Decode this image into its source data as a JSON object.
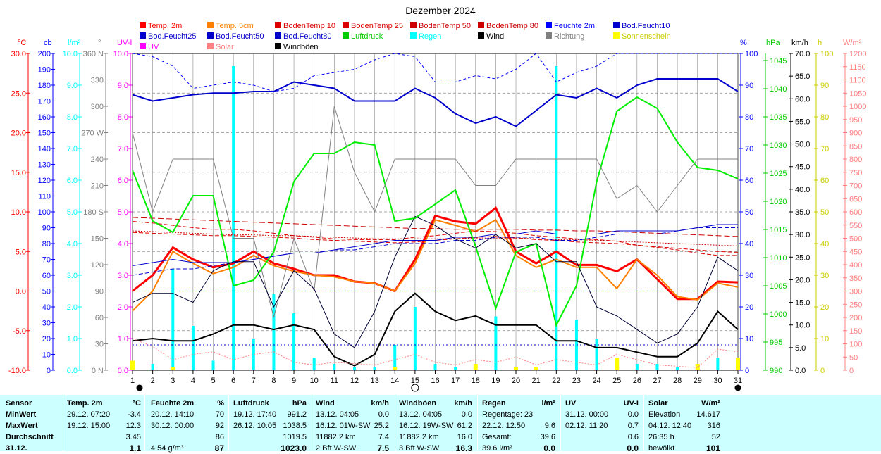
{
  "chart_data": {
    "type": "line",
    "title": "Dezember 2024",
    "x": [
      1,
      2,
      3,
      4,
      5,
      6,
      7,
      8,
      9,
      10,
      11,
      12,
      13,
      14,
      15,
      16,
      17,
      18,
      19,
      20,
      21,
      22,
      23,
      24,
      25,
      26,
      27,
      28,
      29,
      30,
      31
    ],
    "xlim": [
      1,
      31
    ],
    "legend": [
      {
        "label": "Temp. 2m",
        "color": "#ff0000"
      },
      {
        "label": "Temp. 5cm",
        "color": "#ff8000"
      },
      {
        "label": "BodenTemp 10",
        "color": "#dd0000"
      },
      {
        "label": "BodenTemp 25",
        "color": "#dd0000"
      },
      {
        "label": "BodenTemp 50",
        "color": "#cc0000"
      },
      {
        "label": "BodenTemp 80",
        "color": "#cc0000"
      },
      {
        "label": "Feuchte 2m",
        "color": "#0000ff"
      },
      {
        "label": "Bod.Feucht10",
        "color": "#0000cc"
      },
      {
        "label": "Bod.Feucht25",
        "color": "#0000cc"
      },
      {
        "label": "Bod.Feucht50",
        "color": "#0000cc"
      },
      {
        "label": "Bod.Feucht80",
        "color": "#0000cc"
      },
      {
        "label": "Luftdruck",
        "color": "#00cc00"
      },
      {
        "label": "Regen",
        "color": "#00ffff"
      },
      {
        "label": "Wind",
        "color": "#000000"
      },
      {
        "label": "Richtung",
        "color": "#808080"
      },
      {
        "label": "Sonnenschein",
        "color": "#ffff00"
      },
      {
        "label": "UV",
        "color": "#ff00ff"
      },
      {
        "label": "Solar",
        "color": "#ff8080"
      },
      {
        "label": "Windböen",
        "color": "#000000"
      }
    ],
    "axes": {
      "temp": {
        "unit": "°C",
        "ticks": [
          "30.0",
          "25.0",
          "20.0",
          "15.0",
          "10.0",
          "5.0",
          "0.0",
          "-5.0",
          "-10.0"
        ],
        "color": "#ff0000"
      },
      "cb": {
        "unit": "cb",
        "ticks": [
          "200",
          "190",
          "180",
          "170",
          "160",
          "150",
          "140",
          "130",
          "120",
          "110",
          "100",
          "90",
          "80",
          "70",
          "60",
          "50",
          "40",
          "30",
          "20",
          "10",
          "0"
        ],
        "color": "#0000ff"
      },
      "rain": {
        "unit": "l/m²",
        "ticks": [
          "10.0",
          "9.0",
          "8.0",
          "7.0",
          "6.0",
          "5.0",
          "4.0",
          "3.0",
          "2.0",
          "1.0",
          "0.0"
        ],
        "color": "#00ffff"
      },
      "dir": {
        "unit": "°",
        "ticks": [
          "360 N",
          "330",
          "300",
          "270 W",
          "240",
          "210",
          "180 S",
          "150",
          "120",
          "90",
          "60",
          "30",
          "0 N"
        ],
        "color": "#808080"
      },
      "uv": {
        "unit": "UV-I",
        "ticks": [
          "10.0",
          "9.0",
          "8.0",
          "7.0",
          "6.0",
          "5.0",
          "4.0",
          "3.0",
          "2.0",
          "1.0",
          "0.0"
        ],
        "color": "#ff00ff"
      },
      "hum": {
        "unit": "%",
        "ticks": [
          "100",
          "90",
          "80",
          "70",
          "60",
          "50",
          "40",
          "30",
          "20",
          "10",
          "0"
        ],
        "color": "#0000ff"
      },
      "press": {
        "unit": "hPa",
        "ticks": [
          "1045",
          "1040",
          "1035",
          "1030",
          "1025",
          "1020",
          "1015",
          "1010",
          "1005",
          "1000",
          "995",
          "990"
        ],
        "color": "#00cc00"
      },
      "wind": {
        "unit": "km/h",
        "ticks": [
          "70.0",
          "65.0",
          "60.0",
          "55.0",
          "50.0",
          "45.0",
          "40.0",
          "35.0",
          "30.0",
          "25.0",
          "20.0",
          "15.0",
          "10.0",
          "5.0",
          "0.0"
        ],
        "color": "#000000"
      },
      "sun": {
        "unit": "h",
        "ticks": [
          "100",
          "90",
          "80",
          "70",
          "60",
          "50",
          "40",
          "30",
          "20",
          "10",
          "0"
        ],
        "color": "#cccc00"
      },
      "solar": {
        "unit": "W/m²",
        "ticks": [
          "1200",
          "1150",
          "1100",
          "1050",
          "1000",
          "950",
          "900",
          "850",
          "800",
          "750",
          "700",
          "650",
          "600",
          "550",
          "500",
          "450",
          "400",
          "350",
          "300",
          "250",
          "200",
          "150",
          "100",
          "50",
          "0"
        ],
        "color": "#ff8080"
      }
    },
    "series": [
      {
        "name": "Temp. 2m",
        "axis": "temp",
        "color": "#ff0000",
        "width": 3,
        "values": [
          0,
          2,
          5.5,
          4,
          3,
          3.5,
          5,
          3.5,
          2.8,
          2,
          2,
          1.2,
          1,
          0,
          4,
          9.5,
          8.8,
          8.5,
          10.5,
          5,
          3.5,
          5,
          3.3,
          3.3,
          2.5,
          4,
          1.5,
          -1,
          -1,
          1.2,
          1.1
        ]
      },
      {
        "name": "Temp. 5cm",
        "axis": "temp",
        "color": "#ff8000",
        "width": 2,
        "values": [
          -2.5,
          0,
          5,
          3.5,
          2.2,
          3,
          4.5,
          3.2,
          2.5,
          2,
          1.8,
          1.2,
          1,
          0,
          3.5,
          9,
          8.3,
          7.5,
          9,
          4.5,
          3,
          4,
          3,
          3,
          0.3,
          4,
          2,
          -0.7,
          -1.1,
          1,
          0.5
        ]
      },
      {
        "name": "BodenTemp 10",
        "axis": "temp",
        "color": "#dd0000",
        "width": 1,
        "dash": "6,3",
        "values": [
          8.8,
          8.6,
          8.3,
          8,
          7.8,
          7.8,
          7.6,
          7.3,
          7,
          6.8,
          6.6,
          6.5,
          6.5,
          6.5,
          6.8,
          7,
          7.3,
          7.6,
          7.5,
          7.3,
          7,
          6.8,
          6.6,
          6.5,
          6.3,
          5.8,
          5.5,
          5.2,
          4.8,
          4.5,
          4.5
        ]
      },
      {
        "name": "BodenTemp 25",
        "axis": "temp",
        "color": "#dd0000",
        "width": 1,
        "dash": "6,3",
        "values": [
          7.4,
          7.3,
          7.2,
          7.1,
          7,
          7,
          6.9,
          6.8,
          6.7,
          6.5,
          6.4,
          6.3,
          6.2,
          6.1,
          6.2,
          6.4,
          6.6,
          6.8,
          6.9,
          6.7,
          6.5,
          6.4,
          6.2,
          6.1,
          6,
          5.8,
          5.6,
          5.4,
          5.2,
          5,
          4.9
        ]
      },
      {
        "name": "BodenTemp 50",
        "axis": "temp",
        "color": "#cc0000",
        "width": 1,
        "dash": "2,2",
        "values": [
          7.6,
          7.5,
          7.4,
          7.3,
          7.2,
          7.1,
          7.1,
          7,
          7,
          6.9,
          6.8,
          6.7,
          6.6,
          6.6,
          6.6,
          6.6,
          6.6,
          6.7,
          6.7,
          6.7,
          6.6,
          6.5,
          6.5,
          6.4,
          6.3,
          6.2,
          6.1,
          6,
          5.9,
          5.8,
          5.7
        ]
      },
      {
        "name": "BodenTemp 80",
        "axis": "temp",
        "color": "#cc0000",
        "width": 1,
        "dash": "8,4",
        "values": [
          9.3,
          9.2,
          9.1,
          9,
          8.9,
          8.8,
          8.7,
          8.6,
          8.5,
          8.4,
          8.3,
          8.2,
          8.1,
          8,
          7.9,
          7.9,
          7.8,
          7.8,
          7.8,
          7.8,
          7.7,
          7.7,
          7.6,
          7.6,
          7.5,
          7.4,
          7.3,
          7.2,
          7.1,
          7,
          6.9
        ]
      },
      {
        "name": "Feuchte 2m",
        "axis": "hum",
        "color": "#0000cc",
        "width": 2,
        "values": [
          87,
          85,
          86,
          87,
          87.5,
          87.5,
          88,
          88,
          91,
          90,
          89,
          85,
          85,
          85,
          89,
          86,
          81,
          78,
          80,
          77,
          82,
          87,
          86,
          89,
          86,
          90,
          92,
          92,
          92,
          92,
          88
        ]
      },
      {
        "name": "Bod.Feucht10",
        "axis": "hum",
        "color": "#0000ff",
        "width": 1,
        "dash": "4,3",
        "values": [
          100,
          99,
          96,
          89,
          90,
          91,
          90,
          88,
          89,
          93,
          94,
          95,
          98,
          100,
          99,
          91,
          91,
          93,
          92,
          95,
          100,
          91,
          94,
          96,
          100,
          100,
          100,
          100,
          100,
          100,
          100
        ]
      },
      {
        "name": "Bod.Feucht25",
        "axis": "hum",
        "color": "#0000cc",
        "width": 1,
        "dash": "",
        "values": [
          33,
          34,
          35,
          34,
          34,
          34,
          35,
          36,
          37,
          37,
          38,
          39,
          40,
          41,
          41,
          41,
          42,
          42,
          43,
          43,
          44,
          43,
          43,
          43,
          44,
          44,
          44,
          44,
          45,
          46,
          46
        ]
      },
      {
        "name": "Bod.Feucht50",
        "axis": "hum",
        "color": "#0000cc",
        "width": 1,
        "dash": "6,3",
        "values": [
          30,
          31,
          32,
          32,
          33,
          34,
          35,
          36,
          37,
          37,
          38,
          38,
          39,
          40,
          40,
          40,
          41,
          41,
          42,
          42,
          42,
          41,
          41,
          42,
          43,
          43,
          43,
          44,
          45,
          45,
          45
        ]
      },
      {
        "name": "Bod.Feucht80",
        "axis": "hum",
        "color": "#0000cc",
        "width": 1,
        "dash": "2,3",
        "values": [
          8,
          8,
          8,
          8,
          8,
          8,
          8,
          8,
          8,
          8,
          8,
          8,
          8,
          8,
          8,
          8,
          8,
          8,
          8,
          8,
          8,
          8,
          8,
          8,
          8,
          8,
          8,
          8,
          8,
          8,
          8
        ]
      },
      {
        "name": "Luftdruck",
        "axis": "press",
        "color": "#00ee00",
        "width": 2,
        "values": [
          1025.5,
          1016.5,
          1014.5,
          1021,
          1021,
          1005,
          1006,
          1011,
          1023.5,
          1028.5,
          1028.5,
          1030.5,
          1030,
          1016.5,
          1017,
          1019.5,
          1022,
          1012,
          1001,
          1011,
          1012.5,
          998,
          1005,
          1023.5,
          1036,
          1038.5,
          1036.5,
          1030.5,
          1026,
          1025.5,
          1024
        ]
      },
      {
        "name": "Richtung",
        "axis": "dir",
        "color": "#808080",
        "width": 1,
        "values": [
          270,
          180,
          240,
          240,
          240,
          150,
          150,
          60,
          150,
          90,
          300,
          225,
          180,
          240,
          240,
          240,
          240,
          210,
          210,
          240,
          240,
          240,
          240,
          240,
          195,
          210,
          180,
          210,
          240,
          240,
          240
        ]
      },
      {
        "name": "Wind",
        "axis": "wind",
        "color": "#000000",
        "width": 2,
        "values": [
          6.5,
          7,
          6.5,
          6.5,
          8,
          10,
          10,
          9,
          10,
          9,
          3,
          1,
          3.5,
          13,
          17,
          13,
          11,
          12,
          10,
          10,
          10,
          6.5,
          6.5,
          5,
          5,
          4,
          3,
          3,
          6,
          13,
          9
        ]
      },
      {
        "name": "Windböen",
        "axis": "wind",
        "color": "#000033",
        "width": 1,
        "values": [
          15,
          17,
          17,
          15,
          22,
          24,
          24,
          14,
          22,
          18,
          8,
          5,
          13,
          25,
          34,
          32,
          29,
          27,
          30,
          27,
          28,
          24,
          24,
          14,
          12,
          9,
          6,
          8,
          14,
          25,
          22
        ]
      },
      {
        "name": "Solar",
        "axis": "solar",
        "color": "#ff8080",
        "width": 1,
        "dash": "2,2",
        "values": [
          120,
          90,
          40,
          60,
          70,
          40,
          60,
          70,
          30,
          20,
          30,
          25,
          20,
          40,
          60,
          30,
          20,
          40,
          30,
          50,
          20,
          40,
          30,
          20,
          60,
          40,
          20,
          15,
          10,
          80,
          70
        ]
      }
    ],
    "bars": [
      {
        "name": "Regen",
        "axis": "rain",
        "color": "#00ffff",
        "values": [
          0.2,
          0.2,
          3.2,
          1.4,
          0.3,
          9.6,
          1.0,
          2.4,
          1.8,
          0.4,
          0.2,
          0.1,
          0.1,
          0.8,
          2.0,
          0.2,
          0.1,
          0.2,
          1.7,
          0,
          0,
          9.6,
          1.6,
          1.0,
          0.1,
          0.2,
          0.2,
          0.1,
          0.2,
          0.4,
          0.1
        ]
      },
      {
        "name": "Sonnenschein",
        "axis": "sun",
        "color": "#ffff00",
        "values": [
          3,
          0,
          1,
          0,
          0,
          0,
          0,
          0,
          0,
          0,
          0,
          0,
          0,
          1,
          0,
          0,
          0,
          2,
          0,
          1,
          1,
          0,
          0,
          0,
          4,
          0,
          0,
          0,
          2,
          0,
          4
        ]
      }
    ]
  },
  "stats_header": {
    "sensor": "Sensor",
    "temp_label": "Temp. 2m",
    "temp_unit": "°C",
    "hum_label": "Feuchte 2m",
    "hum_unit": "%",
    "press_label": "Luftdruck",
    "press_unit": "hPa",
    "wind_label": "Wind",
    "wind_unit": "km/h",
    "gust_label": "Windböen",
    "gust_unit": "km/h",
    "rain_label": "Regen",
    "rain_unit": "l/m²",
    "uv_label": "UV",
    "uv_unit": "UV-I",
    "solar_label": "Solar",
    "solar_unit": "W/m²"
  },
  "stats_rows": [
    {
      "label": "MinWert",
      "temp_t": "29.12.  07:20",
      "temp_v": "-3.4",
      "hum_t": "20.12.  14:10",
      "hum_v": "70",
      "press_t": "19.12.  17:40",
      "press_v": "991.2",
      "wind_t": "13.12.  04:05",
      "wind_v": "0.0",
      "gust_t": "13.12.  04:05",
      "gust_v": "0.0",
      "rain_t": "Regentage: 23",
      "rain_v": "",
      "uv_t": "31.12.  00:00",
      "uv_v": "0.0",
      "solar_t": "Elevation",
      "solar_v": "14.617"
    },
    {
      "label": "MaxWert",
      "temp_t": "19.12.  15:00",
      "temp_v": "12.3",
      "hum_t": "30.12.  00:00",
      "hum_v": "92",
      "press_t": "26.12.  10:05",
      "press_v": "1038.5",
      "wind_t": "16.12.  01W-SW",
      "wind_v": "25.2",
      "gust_t": "16.12.  19W-SW",
      "gust_v": "61.2",
      "rain_t": "22.12.  12:50",
      "rain_v": "9.6",
      "uv_t": "02.12.  11:20",
      "uv_v": "0.7",
      "solar_t": "04.12.  12:40",
      "solar_v": "316"
    },
    {
      "label": "Durchschnitt",
      "temp_t": "",
      "temp_v": "3.45",
      "hum_t": "",
      "hum_v": "86",
      "press_t": "",
      "press_v": "1019.5",
      "wind_t": "11882.2 km",
      "wind_v": "7.4",
      "gust_t": "11882.2 km",
      "gust_v": "16.0",
      "rain_t": "Gesamt:",
      "rain_v": "39.6",
      "uv_t": "",
      "uv_v": "0.6",
      "solar_t": "26:35 h",
      "solar_v": "52"
    },
    {
      "label": "31.12.",
      "temp_t": "",
      "temp_v": "1.1",
      "hum_t": "4.54 g/m³",
      "hum_v": "87",
      "press_t": "",
      "press_v": "1023.0",
      "wind_t": "2 Bft W-SW",
      "wind_v": "7.5",
      "gust_t": "3 Bft W-SW",
      "gust_v": "16.3",
      "rain_t": "39.6 l/m²",
      "rain_v": "0.0",
      "uv_t": "",
      "uv_v": "0.0",
      "solar_t": "bewölkt",
      "solar_v": "101"
    }
  ]
}
